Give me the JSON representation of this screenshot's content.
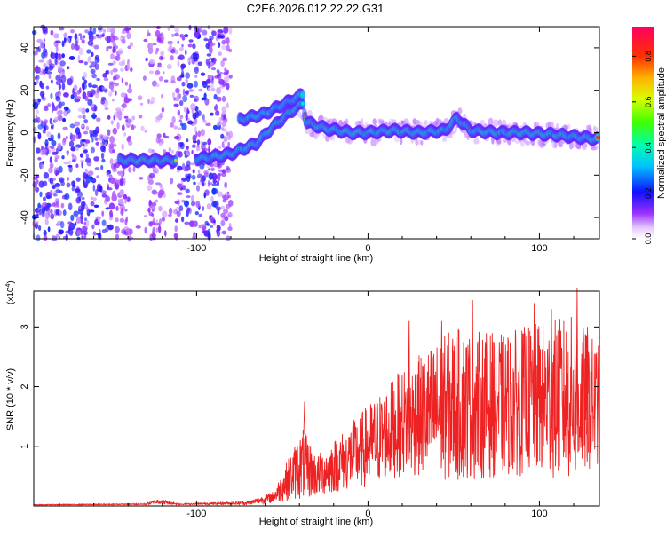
{
  "title": "C2E6.2026.012.22.22.G31",
  "chart_data": [
    {
      "type": "heatmap",
      "name": "spectrogram",
      "xlabel": "Height of straight line (km)",
      "ylabel": "Frequency (Hz)",
      "xlim": [
        -195,
        135
      ],
      "ylim": [
        -50,
        50
      ],
      "x_ticks": [
        -100,
        0,
        100
      ],
      "x_tick_labels": [
        "-100",
        "0",
        "100"
      ],
      "y_ticks": [
        -40,
        -20,
        0,
        20,
        40
      ],
      "y_tick_labels": [
        "-40",
        "-20",
        "0",
        "20",
        "40"
      ],
      "colorbar": {
        "label": "Normalized spectral amplitude",
        "range": [
          0,
          0.93
        ],
        "ticks": [
          0.0,
          0.2,
          0.4,
          0.6,
          0.8
        ],
        "tick_labels": [
          "0.0",
          "0.2",
          "0.4",
          "0.6",
          "0.8"
        ]
      },
      "ridge_trace": [
        {
          "x": -145,
          "y": -13
        },
        {
          "x": -130,
          "y": -13
        },
        {
          "x": -115,
          "y": -13
        },
        {
          "x": -95,
          "y": -12
        },
        {
          "x": -80,
          "y": -10
        },
        {
          "x": -65,
          "y": -5
        },
        {
          "x": -55,
          "y": 3
        },
        {
          "x": -45,
          "y": 10
        },
        {
          "x": -38,
          "y": 14
        },
        {
          "x": -36,
          "y": 5
        },
        {
          "x": -25,
          "y": 2
        },
        {
          "x": -10,
          "y": 0
        },
        {
          "x": 0,
          "y": 0
        },
        {
          "x": 15,
          "y": 1
        },
        {
          "x": 30,
          "y": 0
        },
        {
          "x": 45,
          "y": 1
        },
        {
          "x": 52,
          "y": 7
        },
        {
          "x": 60,
          "y": 1
        },
        {
          "x": 75,
          "y": 0
        },
        {
          "x": 90,
          "y": 0
        },
        {
          "x": 110,
          "y": -1
        },
        {
          "x": 134,
          "y": -3
        }
      ],
      "upper_branch": [
        {
          "x": -75,
          "y": 6
        },
        {
          "x": -60,
          "y": 9
        },
        {
          "x": -48,
          "y": 14
        },
        {
          "x": -38,
          "y": 18
        }
      ],
      "noise_region_x": [
        -195,
        -80
      ]
    },
    {
      "type": "line",
      "name": "snr",
      "xlabel": "Height of straight line (km)",
      "ylabel": "SNR (10 * v/v)",
      "multiplier": "(x10",
      "multiplier_exp": "4",
      "multiplier_close": ")",
      "xlim": [
        -195,
        135
      ],
      "ylim": [
        0,
        3.6
      ],
      "x_ticks": [
        -100,
        0,
        100
      ],
      "x_tick_labels": [
        "-100",
        "0",
        "100"
      ],
      "y_ticks": [
        1,
        2,
        3
      ],
      "y_tick_labels": [
        "1",
        "2",
        "3"
      ],
      "color": "#ee2222",
      "envelope": [
        {
          "x": -195,
          "mean": 0.02,
          "amp": 0.005
        },
        {
          "x": -130,
          "mean": 0.03,
          "amp": 0.01
        },
        {
          "x": -122,
          "mean": 0.08,
          "amp": 0.05
        },
        {
          "x": -110,
          "mean": 0.03,
          "amp": 0.01
        },
        {
          "x": -70,
          "mean": 0.05,
          "amp": 0.03
        },
        {
          "x": -55,
          "mean": 0.15,
          "amp": 0.1
        },
        {
          "x": -45,
          "mean": 0.5,
          "amp": 0.4
        },
        {
          "x": -38,
          "mean": 0.7,
          "amp": 0.6
        },
        {
          "x": -30,
          "mean": 0.5,
          "amp": 0.35
        },
        {
          "x": -15,
          "mean": 0.75,
          "amp": 0.5
        },
        {
          "x": 0,
          "mean": 1.0,
          "amp": 0.7
        },
        {
          "x": 20,
          "mean": 1.4,
          "amp": 0.9
        },
        {
          "x": 50,
          "mean": 1.7,
          "amp": 1.3
        },
        {
          "x": 80,
          "mean": 1.7,
          "amp": 1.2
        },
        {
          "x": 100,
          "mean": 1.8,
          "amp": 1.3
        },
        {
          "x": 120,
          "mean": 1.8,
          "amp": 1.4
        },
        {
          "x": 135,
          "mean": 1.7,
          "amp": 1.0
        }
      ],
      "peaks": [
        {
          "x": 43,
          "y": 3.1
        },
        {
          "x": 61,
          "y": 3.45
        },
        {
          "x": 97,
          "y": 3.4
        },
        {
          "x": 107,
          "y": 3.3
        },
        {
          "x": 122,
          "y": 3.65
        },
        {
          "x": 128,
          "y": 3.0
        },
        {
          "x": 24,
          "y": 3.1
        },
        {
          "x": -37,
          "y": 1.75
        }
      ]
    }
  ]
}
